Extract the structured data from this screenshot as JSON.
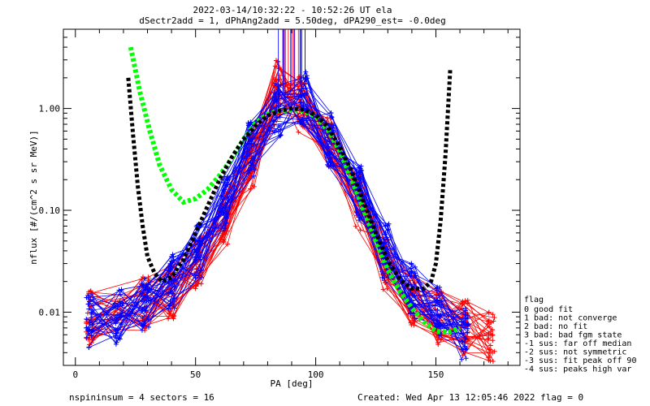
{
  "chart_data": {
    "type": "line",
    "title": "2022-03-14/10:32:22 - 10:52:26 UT ela",
    "subtitle": "dSectr2add = 1, dPhAng2add = 5.50deg, dPA290_est=  -0.0deg",
    "xlabel": "PA [deg]",
    "ylabel": "nflux [#/(cm^2 s sr MeV)]",
    "xlim": [
      -5,
      185
    ],
    "ylim": [
      0.003,
      6.0
    ],
    "yscale": "log",
    "xticks": [
      0,
      50,
      100,
      150
    ],
    "xtick_labels": [
      "0",
      "50",
      "100",
      "150"
    ],
    "yticks": [
      0.01,
      0.1,
      1.0
    ],
    "ytick_labels": [
      "0.01",
      "0.10",
      "1.00"
    ],
    "grid": false,
    "series": [
      {
        "color": "#ff0000",
        "style": "thin-lines-plus-markers",
        "x": [
          6,
          29,
          40,
          51,
          62,
          73,
          84,
          94,
          106,
          118,
          129,
          140,
          151,
          162,
          173
        ],
        "y": [
          0.009,
          0.012,
          0.016,
          0.03,
          0.08,
          0.3,
          1.6,
          1.1,
          0.45,
          0.12,
          0.03,
          0.014,
          0.009,
          0.007,
          0.006
        ]
      },
      {
        "color": "#0000ff",
        "style": "thin-lines-plus-markers",
        "x": [
          6,
          18,
          29,
          40,
          51,
          62,
          73,
          84,
          95,
          106,
          118,
          129,
          140,
          151,
          162
        ],
        "y": [
          0.008,
          0.009,
          0.012,
          0.02,
          0.04,
          0.12,
          0.4,
          0.95,
          1.3,
          0.5,
          0.15,
          0.04,
          0.016,
          0.01,
          0.006
        ]
      },
      {
        "color": "#00ff00",
        "style": "thick-dotted",
        "x": [
          23,
          27,
          31,
          35,
          40,
          45,
          50,
          55,
          60,
          65,
          70,
          75,
          80,
          85,
          90,
          95,
          100,
          105,
          110,
          115,
          120,
          125,
          130,
          135,
          140,
          145,
          150,
          155,
          160
        ],
        "y": [
          4.0,
          1.4,
          0.6,
          0.28,
          0.16,
          0.12,
          0.13,
          0.16,
          0.22,
          0.32,
          0.5,
          0.72,
          0.88,
          0.95,
          0.97,
          0.95,
          0.83,
          0.62,
          0.38,
          0.2,
          0.1,
          0.05,
          0.026,
          0.016,
          0.011,
          0.008,
          0.0065,
          0.0063,
          0.007
        ]
      },
      {
        "color": "#000000",
        "style": "thick-dotted",
        "x": [
          22,
          24,
          26,
          28,
          30,
          33,
          36,
          40,
          45,
          50,
          55,
          60,
          65,
          70,
          75,
          80,
          85,
          90,
          95,
          100,
          105,
          110,
          115,
          120,
          125,
          130,
          135,
          140,
          145,
          148,
          150,
          152,
          154,
          156
        ],
        "y": [
          2.0,
          0.55,
          0.17,
          0.07,
          0.035,
          0.024,
          0.02,
          0.022,
          0.033,
          0.06,
          0.11,
          0.2,
          0.33,
          0.5,
          0.68,
          0.85,
          0.95,
          1.0,
          0.97,
          0.86,
          0.66,
          0.42,
          0.24,
          0.12,
          0.06,
          0.032,
          0.021,
          0.017,
          0.017,
          0.02,
          0.03,
          0.08,
          0.35,
          2.5
        ]
      }
    ]
  },
  "legend": {
    "title": "flag",
    "entries": [
      " 0 good fit",
      " 1 bad: not converge",
      " 2 bad: no fit",
      " 3 bad: bad fgm state",
      "-1 sus: far off median",
      "-2 sus: not symmetric",
      "-3 sus: fit peak off 90",
      "-4 sus: peaks high var"
    ]
  },
  "footer": {
    "left": "nspininsum =  4   sectors = 16",
    "right": "Created: Wed Apr 13 12:05:46 2022   flag = 0"
  }
}
